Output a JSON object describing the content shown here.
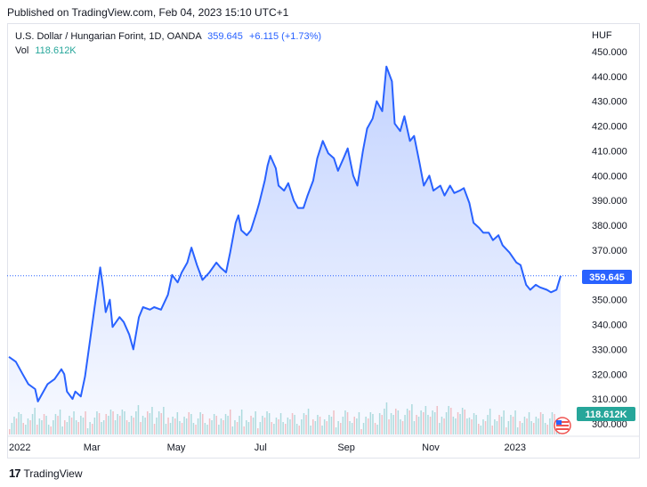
{
  "header": {
    "published": "Published on TradingView.com, Feb 04, 2023 15:10 UTC+1"
  },
  "legend": {
    "symbol": "U.S. Dollar / Hungarian Forint, 1D, OANDA",
    "price": "359.645",
    "change": "+6.115 (+1.73%)",
    "vol_label": "Vol",
    "vol_value": "118.612K"
  },
  "footer": {
    "brand": "TradingView"
  },
  "colors": {
    "line": "#2962ff",
    "area": "#2962ff",
    "vol_up": "#26a69a",
    "vol_down": "#ef5350",
    "badge": "#2962ff",
    "vol_badge": "#26a69a"
  },
  "chart_data": {
    "type": "area",
    "currency_label": "HUF",
    "y_ticks": [
      "450.000",
      "440.000",
      "430.000",
      "420.000",
      "410.000",
      "400.000",
      "390.000",
      "380.000",
      "370.000",
      "360.000",
      "350.000",
      "340.000",
      "330.000",
      "320.000",
      "310.000",
      "300.000"
    ],
    "ylim": [
      300,
      455
    ],
    "x_labels": [
      {
        "label": "2022",
        "date": "2022-01-01"
      },
      {
        "label": "Mar",
        "date": "2022-03-01"
      },
      {
        "label": "May",
        "date": "2022-05-01"
      },
      {
        "label": "Jul",
        "date": "2022-07-01"
      },
      {
        "label": "Sep",
        "date": "2022-09-01"
      },
      {
        "label": "Nov",
        "date": "2022-11-01"
      },
      {
        "label": "2023",
        "date": "2023-01-01"
      }
    ],
    "xlim": [
      "2021-12-31",
      "2023-02-20"
    ],
    "series": [
      {
        "points": [
          [
            "2021-12-31",
            327
          ],
          [
            "2022-01-05",
            325
          ],
          [
            "2022-01-10",
            320
          ],
          [
            "2022-01-14",
            316
          ],
          [
            "2022-01-19",
            314
          ],
          [
            "2022-01-21",
            309
          ],
          [
            "2022-01-25",
            313
          ],
          [
            "2022-01-28",
            316
          ],
          [
            "2022-02-02",
            318
          ],
          [
            "2022-02-07",
            322
          ],
          [
            "2022-02-09",
            320
          ],
          [
            "2022-02-11",
            313
          ],
          [
            "2022-02-15",
            310
          ],
          [
            "2022-02-17",
            313
          ],
          [
            "2022-02-21",
            311
          ],
          [
            "2022-02-24",
            319
          ],
          [
            "2022-02-28",
            335
          ],
          [
            "2022-03-03",
            347
          ],
          [
            "2022-03-07",
            363
          ],
          [
            "2022-03-09",
            355
          ],
          [
            "2022-03-11",
            345
          ],
          [
            "2022-03-14",
            350
          ],
          [
            "2022-03-16",
            339
          ],
          [
            "2022-03-21",
            343
          ],
          [
            "2022-03-24",
            341
          ],
          [
            "2022-03-28",
            336
          ],
          [
            "2022-03-31",
            330
          ],
          [
            "2022-04-04",
            343
          ],
          [
            "2022-04-07",
            347
          ],
          [
            "2022-04-12",
            346
          ],
          [
            "2022-04-15",
            347
          ],
          [
            "2022-04-20",
            346
          ],
          [
            "2022-04-25",
            352
          ],
          [
            "2022-04-28",
            360
          ],
          [
            "2022-05-02",
            357
          ],
          [
            "2022-05-05",
            361
          ],
          [
            "2022-05-09",
            365
          ],
          [
            "2022-05-12",
            371
          ],
          [
            "2022-05-16",
            364
          ],
          [
            "2022-05-18",
            361
          ],
          [
            "2022-05-20",
            358
          ],
          [
            "2022-05-25",
            361
          ],
          [
            "2022-05-30",
            365
          ],
          [
            "2022-06-02",
            363
          ],
          [
            "2022-06-06",
            361
          ],
          [
            "2022-06-09",
            369
          ],
          [
            "2022-06-13",
            381
          ],
          [
            "2022-06-15",
            384
          ],
          [
            "2022-06-17",
            378
          ],
          [
            "2022-06-21",
            376
          ],
          [
            "2022-06-24",
            378
          ],
          [
            "2022-06-28",
            385
          ],
          [
            "2022-06-30",
            389
          ],
          [
            "2022-07-04",
            398
          ],
          [
            "2022-07-06",
            404
          ],
          [
            "2022-07-08",
            408
          ],
          [
            "2022-07-12",
            403
          ],
          [
            "2022-07-14",
            396
          ],
          [
            "2022-07-18",
            394
          ],
          [
            "2022-07-21",
            397
          ],
          [
            "2022-07-25",
            390
          ],
          [
            "2022-07-28",
            387
          ],
          [
            "2022-08-01",
            387
          ],
          [
            "2022-08-04",
            392
          ],
          [
            "2022-08-08",
            398
          ],
          [
            "2022-08-11",
            407
          ],
          [
            "2022-08-15",
            414
          ],
          [
            "2022-08-19",
            409
          ],
          [
            "2022-08-23",
            407
          ],
          [
            "2022-08-26",
            402
          ],
          [
            "2022-08-30",
            407
          ],
          [
            "2022-09-02",
            411
          ],
          [
            "2022-09-06",
            400
          ],
          [
            "2022-09-09",
            396
          ],
          [
            "2022-09-13",
            410
          ],
          [
            "2022-09-16",
            419
          ],
          [
            "2022-09-20",
            423
          ],
          [
            "2022-09-23",
            430
          ],
          [
            "2022-09-27",
            426
          ],
          [
            "2022-09-30",
            444
          ],
          [
            "2022-10-04",
            438
          ],
          [
            "2022-10-06",
            421
          ],
          [
            "2022-10-10",
            418
          ],
          [
            "2022-10-13",
            424
          ],
          [
            "2022-10-17",
            414
          ],
          [
            "2022-10-20",
            416
          ],
          [
            "2022-10-24",
            405
          ],
          [
            "2022-10-27",
            396
          ],
          [
            "2022-10-31",
            400
          ],
          [
            "2022-11-03",
            394
          ],
          [
            "2022-11-08",
            396
          ],
          [
            "2022-11-11",
            392
          ],
          [
            "2022-11-15",
            396
          ],
          [
            "2022-11-18",
            393
          ],
          [
            "2022-11-22",
            394
          ],
          [
            "2022-11-25",
            395
          ],
          [
            "2022-11-29",
            389
          ],
          [
            "2022-12-02",
            381
          ],
          [
            "2022-12-06",
            379
          ],
          [
            "2022-12-09",
            377
          ],
          [
            "2022-12-13",
            377
          ],
          [
            "2022-12-16",
            374
          ],
          [
            "2022-12-20",
            376
          ],
          [
            "2022-12-23",
            372
          ],
          [
            "2022-12-28",
            369
          ],
          [
            "2023-01-02",
            365
          ],
          [
            "2023-01-05",
            364
          ],
          [
            "2023-01-09",
            356
          ],
          [
            "2023-01-12",
            354
          ],
          [
            "2023-01-16",
            356
          ],
          [
            "2023-01-19",
            355
          ],
          [
            "2023-01-24",
            354
          ],
          [
            "2023-01-27",
            353
          ],
          [
            "2023-01-31",
            354
          ],
          [
            "2023-02-03",
            359.645
          ]
        ]
      }
    ],
    "current_price_label": "359.645",
    "current_price": 359.645,
    "volume_label": "118.612K"
  }
}
